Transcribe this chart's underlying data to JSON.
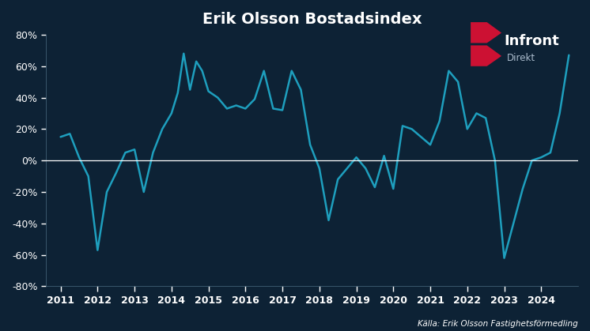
{
  "title": "Erik Olsson Bostadsindex",
  "background_color": "#0d2235",
  "line_color": "#1e9fbe",
  "line_width": 1.8,
  "zero_line_color": "#ffffff",
  "source_text": "Källa: Erik Olsson Fastighetsförmedling",
  "logo_text": "Infront",
  "logo_sub": "Direkt",
  "ylim": [
    -80,
    80
  ],
  "yticks": [
    -80,
    -60,
    -40,
    -20,
    0,
    20,
    40,
    60,
    80
  ],
  "xtick_labels": [
    "2011",
    "2012",
    "2013",
    "2014",
    "2015",
    "2016",
    "2017",
    "2018",
    "2019",
    "2020",
    "2021",
    "2022",
    "2023",
    "2024"
  ],
  "x": [
    2011.0,
    2011.25,
    2011.5,
    2011.75,
    2012.0,
    2012.25,
    2012.5,
    2012.75,
    2013.0,
    2013.25,
    2013.5,
    2013.75,
    2014.0,
    2014.17,
    2014.33,
    2014.5,
    2014.67,
    2014.83,
    2015.0,
    2015.25,
    2015.5,
    2015.75,
    2016.0,
    2016.25,
    2016.5,
    2016.75,
    2017.0,
    2017.25,
    2017.5,
    2017.75,
    2018.0,
    2018.25,
    2018.5,
    2018.75,
    2019.0,
    2019.25,
    2019.5,
    2019.75,
    2020.0,
    2020.25,
    2020.5,
    2020.75,
    2021.0,
    2021.25,
    2021.5,
    2021.75,
    2022.0,
    2022.25,
    2022.5,
    2022.75,
    2023.0,
    2023.25,
    2023.5,
    2023.75,
    2024.0,
    2024.25,
    2024.5,
    2024.75
  ],
  "y": [
    15,
    17,
    2,
    -10,
    -57,
    -20,
    -8,
    5,
    7,
    -20,
    5,
    20,
    30,
    43,
    68,
    45,
    63,
    57,
    44,
    40,
    33,
    35,
    33,
    39,
    57,
    33,
    32,
    57,
    45,
    10,
    -5,
    -38,
    -12,
    -5,
    2,
    -5,
    -17,
    3,
    -18,
    22,
    20,
    15,
    10,
    25,
    57,
    50,
    20,
    30,
    27,
    0,
    -62,
    -40,
    -18,
    0,
    2,
    5,
    30,
    67
  ]
}
